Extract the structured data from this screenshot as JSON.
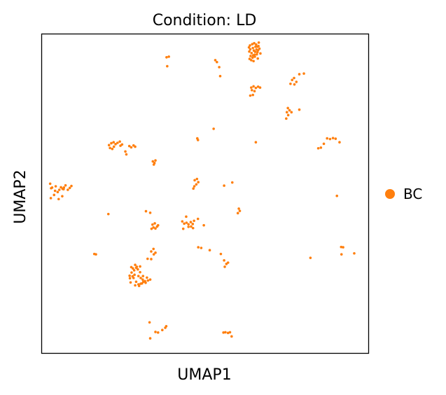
{
  "chart_data": {
    "type": "scatter",
    "title": "Condition: LD",
    "xlabel": "UMAP1",
    "ylabel": "UMAP2",
    "xlim": [
      0,
      100
    ],
    "ylim": [
      0,
      100
    ],
    "grid": false,
    "ticks": false,
    "legend_position": "right",
    "series": [
      {
        "name": "BC",
        "color": "#ff7f0e",
        "points": [
          [
            63.5,
            94.5
          ],
          [
            63.8,
            95.2
          ],
          [
            64.2,
            94.0
          ],
          [
            64.6,
            95.6
          ],
          [
            64.9,
            94.8
          ],
          [
            65.1,
            93.5
          ],
          [
            65.4,
            96.0
          ],
          [
            65.7,
            95.1
          ],
          [
            66.0,
            94.3
          ],
          [
            66.3,
            96.2
          ],
          [
            66.6,
            95.4
          ],
          [
            66.9,
            93.9
          ],
          [
            63.9,
            93.1
          ],
          [
            64.5,
            92.6
          ],
          [
            65.2,
            92.9
          ],
          [
            65.8,
            93.6
          ],
          [
            66.2,
            94.9
          ],
          [
            63.7,
            96.4
          ],
          [
            64.4,
            96.8
          ],
          [
            65.0,
            97.1
          ],
          [
            65.6,
            96.7
          ],
          [
            66.4,
            97.3
          ],
          [
            64.1,
            91.8
          ],
          [
            64.8,
            91.5
          ],
          [
            63.4,
            95.8
          ],
          [
            65.3,
            94.4
          ],
          [
            64.7,
            93.3
          ],
          [
            65.9,
            96.0
          ],
          [
            63.6,
            92.2
          ],
          [
            66.1,
            92.3
          ],
          [
            64.1,
            83.2
          ],
          [
            64.8,
            83.6
          ],
          [
            65.5,
            83.1
          ],
          [
            66.2,
            83.5
          ],
          [
            66.8,
            83.2
          ],
          [
            64.3,
            82.4
          ],
          [
            65.1,
            82.1
          ],
          [
            64.6,
            80.9
          ],
          [
            63.8,
            80.7
          ],
          [
            76.6,
            85.6
          ],
          [
            76.1,
            84.4
          ],
          [
            77.3,
            84.2
          ],
          [
            77.9,
            85.0
          ],
          [
            77.2,
            86.2
          ],
          [
            78.8,
            87.4
          ],
          [
            80.2,
            87.6
          ],
          [
            75.4,
            74.6
          ],
          [
            75.0,
            75.5
          ],
          [
            75.8,
            76.1
          ],
          [
            76.4,
            75.5
          ],
          [
            75.3,
            76.8
          ],
          [
            74.8,
            73.5
          ],
          [
            78.8,
            76.3
          ],
          [
            38.2,
            92.7
          ],
          [
            38.9,
            92.9
          ],
          [
            38.4,
            89.9
          ],
          [
            53.1,
            91.8
          ],
          [
            53.6,
            91.2
          ],
          [
            54.3,
            89.6
          ],
          [
            54.6,
            86.8
          ],
          [
            20.6,
            65.2
          ],
          [
            21.3,
            65.8
          ],
          [
            22.0,
            66.1
          ],
          [
            22.6,
            65.5
          ],
          [
            22.1,
            64.7
          ],
          [
            23.2,
            65.9
          ],
          [
            23.9,
            66.3
          ],
          [
            24.6,
            65.4
          ],
          [
            20.9,
            64.3
          ],
          [
            24.1,
            65.0
          ],
          [
            26.8,
            64.9
          ],
          [
            28.1,
            65.1
          ],
          [
            28.6,
            64.7
          ],
          [
            27.4,
            64.5
          ],
          [
            25.6,
            63.2
          ],
          [
            25.9,
            62.3
          ],
          [
            21.6,
            64.0
          ],
          [
            2.9,
            51.7
          ],
          [
            4.3,
            52.3
          ],
          [
            2.6,
            53.1
          ],
          [
            6.7,
            51.4
          ],
          [
            4.1,
            50.9
          ],
          [
            3.8,
            49.6
          ],
          [
            4.9,
            50.5
          ],
          [
            5.4,
            51.2
          ],
          [
            6.4,
            51.5
          ],
          [
            8.6,
            51.8
          ],
          [
            9.1,
            52.4
          ],
          [
            8.0,
            51.2
          ],
          [
            5.9,
            52.0
          ],
          [
            3.2,
            51.9
          ],
          [
            2.8,
            48.6
          ],
          [
            5.2,
            48.3
          ],
          [
            6.3,
            49.2
          ],
          [
            6.8,
            51.9
          ],
          [
            7.3,
            52.6
          ],
          [
            34.0,
            60.1
          ],
          [
            34.5,
            59.6
          ],
          [
            34.8,
            60.4
          ],
          [
            34.3,
            59.1
          ],
          [
            47.6,
            67.3
          ],
          [
            47.8,
            66.8
          ],
          [
            52.6,
            70.3
          ],
          [
            65.5,
            66.1
          ],
          [
            47.5,
            54.6
          ],
          [
            46.8,
            54.2
          ],
          [
            47.3,
            52.9
          ],
          [
            46.7,
            52.3
          ],
          [
            47.9,
            53.6
          ],
          [
            46.4,
            51.6
          ],
          [
            55.8,
            52.5
          ],
          [
            58.3,
            53.5
          ],
          [
            20.4,
            43.6
          ],
          [
            31.9,
            44.5
          ],
          [
            33.2,
            44.0
          ],
          [
            33.6,
            39.0
          ],
          [
            34.2,
            39.4
          ],
          [
            34.8,
            39.1
          ],
          [
            35.3,
            39.7
          ],
          [
            33.9,
            40.3
          ],
          [
            34.6,
            40.7
          ],
          [
            35.6,
            40.1
          ],
          [
            43.0,
            41.3
          ],
          [
            43.6,
            40.6
          ],
          [
            44.3,
            40.9
          ],
          [
            44.9,
            40.4
          ],
          [
            45.6,
            41.1
          ],
          [
            46.2,
            40.5
          ],
          [
            46.6,
            41.5
          ],
          [
            43.3,
            39.0
          ],
          [
            44.9,
            39.6
          ],
          [
            45.7,
            39.7
          ],
          [
            46.3,
            39.2
          ],
          [
            44.2,
            42.8
          ],
          [
            47.8,
            42.1
          ],
          [
            49.6,
            40.1
          ],
          [
            60.0,
            43.9
          ],
          [
            60.6,
            44.6
          ],
          [
            60.3,
            45.3
          ],
          [
            16.1,
            31.1
          ],
          [
            16.6,
            31.0
          ],
          [
            32.4,
            29.6
          ],
          [
            33.5,
            29.5
          ],
          [
            33.5,
            31.9
          ],
          [
            34.3,
            31.0
          ],
          [
            34.8,
            31.5
          ],
          [
            34.2,
            32.7
          ],
          [
            27.5,
            25.3
          ],
          [
            28.3,
            26.0
          ],
          [
            28.9,
            26.8
          ],
          [
            27.9,
            26.6
          ],
          [
            28.6,
            27.7
          ],
          [
            29.4,
            26.3
          ],
          [
            30.1,
            27.2
          ],
          [
            27.0,
            23.5
          ],
          [
            27.8,
            24.1
          ],
          [
            28.4,
            24.6
          ],
          [
            29.6,
            24.2
          ],
          [
            30.3,
            23.6
          ],
          [
            31.0,
            24.2
          ],
          [
            28.9,
            22.4
          ],
          [
            29.6,
            21.6
          ],
          [
            30.3,
            21.8
          ],
          [
            31.1,
            22.4
          ],
          [
            31.8,
            22.1
          ],
          [
            32.5,
            22.8
          ],
          [
            33.2,
            23.1
          ],
          [
            27.2,
            22.2
          ],
          [
            28.6,
            21.3
          ],
          [
            30.9,
            23.1
          ],
          [
            32.2,
            23.7
          ],
          [
            29.1,
            27.1
          ],
          [
            29.8,
            21.1
          ],
          [
            30.7,
            21.9
          ],
          [
            28.1,
            23.6
          ],
          [
            30.1,
            25.4
          ],
          [
            31.6,
            22.6
          ],
          [
            26.9,
            24.3
          ],
          [
            27.4,
            27.0
          ],
          [
            47.9,
            33.2
          ],
          [
            48.8,
            33.0
          ],
          [
            51.4,
            32.3
          ],
          [
            54.8,
            31.1
          ],
          [
            55.8,
            29.1
          ],
          [
            56.5,
            28.0
          ],
          [
            57.0,
            28.4
          ],
          [
            56.0,
            27.1
          ],
          [
            82.2,
            29.9
          ],
          [
            91.6,
            33.3
          ],
          [
            92.2,
            33.2
          ],
          [
            91.7,
            31.0
          ],
          [
            95.6,
            31.3
          ],
          [
            33.0,
            9.7
          ],
          [
            34.8,
            6.7
          ],
          [
            35.6,
            6.5
          ],
          [
            36.9,
            7.3
          ],
          [
            37.8,
            8.0
          ],
          [
            38.1,
            8.5
          ],
          [
            33.2,
            4.7
          ],
          [
            55.6,
            6.5
          ],
          [
            56.2,
            6.6
          ],
          [
            57.0,
            6.4
          ],
          [
            57.6,
            6.6
          ],
          [
            58.1,
            5.3
          ],
          [
            84.6,
            64.2
          ],
          [
            85.4,
            64.4
          ],
          [
            86.3,
            65.6
          ],
          [
            87.3,
            67.3
          ],
          [
            88.2,
            67.1
          ],
          [
            89.1,
            67.4
          ],
          [
            89.9,
            67.2
          ],
          [
            91.1,
            66.1
          ],
          [
            90.3,
            49.3
          ]
        ]
      }
    ]
  }
}
